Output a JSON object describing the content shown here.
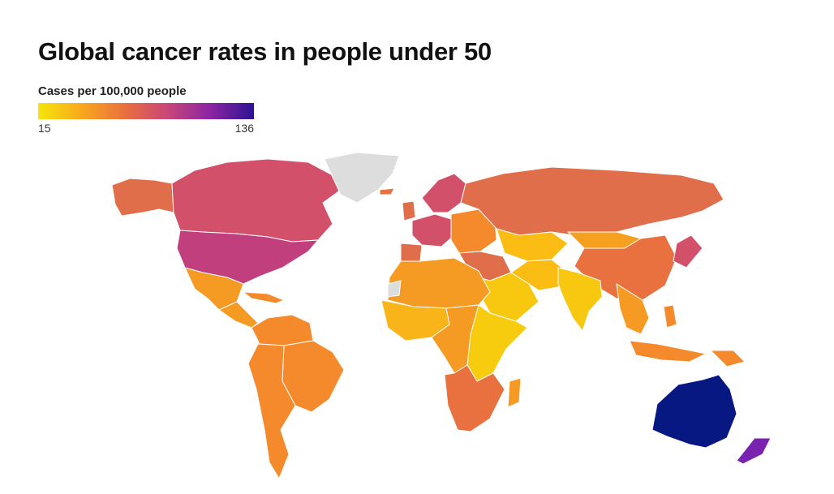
{
  "title": "Global cancer rates in people under 50",
  "legend": {
    "title": "Cases per 100,000 people",
    "min_label": "15",
    "max_label": "136",
    "gradient": [
      "#f5e50a",
      "#f9a91c",
      "#e9703f",
      "#c94678",
      "#8b24a3",
      "#2b1392"
    ]
  },
  "colors": {
    "no_data": "#dddddd",
    "ocean": "#ffffff"
  },
  "regions": [
    {
      "id": "alaska",
      "color": "#e06e4a"
    },
    {
      "id": "canada",
      "color": "#d2506a"
    },
    {
      "id": "greenland",
      "color": "#dddddd"
    },
    {
      "id": "usa",
      "color": "#c23f7e"
    },
    {
      "id": "mexico",
      "color": "#f59a22"
    },
    {
      "id": "central-america",
      "color": "#f59a22"
    },
    {
      "id": "caribbean",
      "color": "#f48a2c"
    },
    {
      "id": "south-america-north",
      "color": "#f48a2c"
    },
    {
      "id": "brazil",
      "color": "#f48a2c"
    },
    {
      "id": "southern-cone",
      "color": "#f48a2c"
    },
    {
      "id": "iceland",
      "color": "#e9703f"
    },
    {
      "id": "scandinavia",
      "color": "#d2506a"
    },
    {
      "id": "western-europe",
      "color": "#d2506a"
    },
    {
      "id": "uk",
      "color": "#e06e4a"
    },
    {
      "id": "iberia",
      "color": "#e06e4a"
    },
    {
      "id": "eastern-europe",
      "color": "#f48a2c"
    },
    {
      "id": "russia",
      "color": "#e06e4a"
    },
    {
      "id": "central-asia",
      "color": "#fbbd14"
    },
    {
      "id": "mongolia",
      "color": "#f5a01e"
    },
    {
      "id": "china",
      "color": "#e9703f"
    },
    {
      "id": "korea-japan",
      "color": "#d2506a"
    },
    {
      "id": "middle-east",
      "color": "#e06e4a"
    },
    {
      "id": "arabia",
      "color": "#f7c80f"
    },
    {
      "id": "iran-afghanistan",
      "color": "#fbbd14"
    },
    {
      "id": "india",
      "color": "#f7c80f"
    },
    {
      "id": "southeast-asia",
      "color": "#f59a22"
    },
    {
      "id": "indonesia",
      "color": "#f48a2c"
    },
    {
      "id": "new-guinea",
      "color": "#f48a2c"
    },
    {
      "id": "philippines",
      "color": "#f48a2c"
    },
    {
      "id": "north-africa",
      "color": "#f59a22"
    },
    {
      "id": "west-africa",
      "color": "#f9b41a"
    },
    {
      "id": "east-africa",
      "color": "#f7cc0e"
    },
    {
      "id": "central-africa",
      "color": "#f59a22"
    },
    {
      "id": "southern-africa",
      "color": "#e9703f"
    },
    {
      "id": "madagascar",
      "color": "#f59a22"
    },
    {
      "id": "western-sahara",
      "color": "#dddddd"
    },
    {
      "id": "australia",
      "color": "#081883"
    },
    {
      "id": "new-zealand",
      "color": "#7a23b0"
    }
  ]
}
